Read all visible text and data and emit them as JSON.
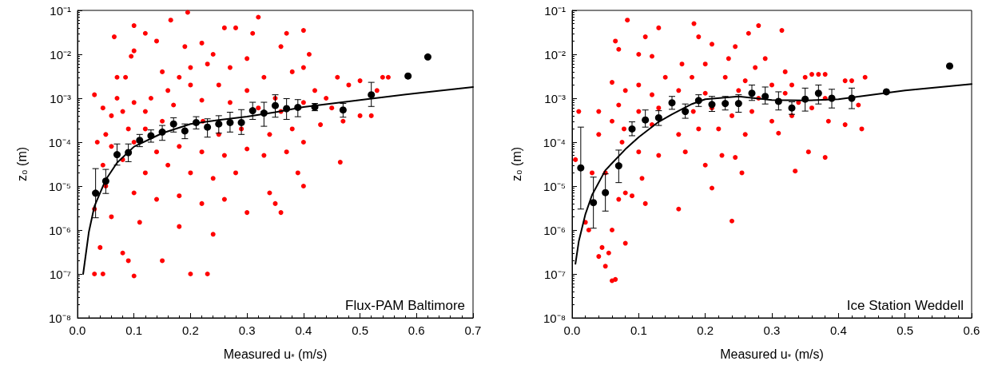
{
  "chart_data": [
    {
      "type": "scatter",
      "xlabel": "Measured u$_{*}$ (m/s)",
      "ylabel": "z₀ (m)",
      "log": "y",
      "annotations": [
        "Flux-PAM Baltimore"
      ],
      "xlim": [
        0,
        0.7
      ],
      "xticks": [
        {
          "value": 0,
          "label": "0.0"
        },
        0.1,
        0.2,
        0.3,
        0.4,
        0.5,
        0.6,
        0.7
      ],
      "ylim": [
        1e-08,
        0.1
      ],
      "yticks": [
        {
          "value": 1e-08,
          "label": "10⁻⁸"
        },
        {
          "value": 1e-07,
          "label": "10⁻⁷"
        },
        {
          "value": 1e-06,
          "label": "10⁻⁶"
        },
        {
          "value": 1e-05,
          "label": "10⁻⁵"
        },
        {
          "value": 0.0001,
          "label": "10⁻⁴"
        },
        {
          "value": 0.001,
          "label": "10⁻³"
        },
        {
          "value": 0.01,
          "label": "10⁻²"
        },
        {
          "value": 0.1,
          "label": "10⁻¹"
        }
      ],
      "series": [
        {
          "type": "scatter",
          "color": "#ff0000",
          "marker": "circle",
          "x": [
            0.195,
            0.165,
            0.32,
            0.1,
            0.065,
            0.12,
            0.14,
            0.19,
            0.22,
            0.26,
            0.28,
            0.31,
            0.36,
            0.37,
            0.4,
            0.41,
            0.1,
            0.095,
            0.24,
            0.3,
            0.07,
            0.085,
            0.15,
            0.18,
            0.2,
            0.23,
            0.27,
            0.33,
            0.38,
            0.4,
            0.46,
            0.48,
            0.5,
            0.54,
            0.55,
            0.53,
            0.42,
            0.44,
            0.35,
            0.3,
            0.25,
            0.2,
            0.16,
            0.13,
            0.1,
            0.07,
            0.03,
            0.045,
            0.06,
            0.08,
            0.12,
            0.17,
            0.22,
            0.27,
            0.32,
            0.36,
            0.4,
            0.45,
            0.5,
            0.52,
            0.47,
            0.43,
            0.38,
            0.34,
            0.29,
            0.25,
            0.222,
            0.15,
            0.12,
            0.09,
            0.05,
            0.035,
            0.06,
            0.1,
            0.14,
            0.18,
            0.22,
            0.26,
            0.3,
            0.33,
            0.37,
            0.4,
            0.39,
            0.4,
            0.465,
            0.045,
            0.08,
            0.12,
            0.16,
            0.2,
            0.24,
            0.28,
            0.05,
            0.1,
            0.14,
            0.18,
            0.22,
            0.26,
            0.34,
            0.35,
            0.36,
            0.03,
            0.06,
            0.11,
            0.18,
            0.24,
            0.3,
            0.04,
            0.08,
            0.09,
            0.15,
            0.03,
            0.045,
            0.1,
            0.2,
            0.23
          ],
          "values": [
            0.09,
            0.06,
            0.07,
            0.045,
            0.025,
            0.03,
            0.02,
            0.015,
            0.018,
            0.04,
            0.04,
            0.03,
            0.015,
            0.03,
            0.035,
            0.01,
            0.012,
            0.009,
            0.01,
            0.008,
            0.003,
            0.003,
            0.004,
            0.003,
            0.005,
            0.006,
            0.005,
            0.003,
            0.004,
            0.005,
            0.003,
            0.002,
            0.0025,
            0.003,
            0.003,
            0.0015,
            0.0015,
            0.001,
            0.001,
            0.0015,
            0.002,
            0.002,
            0.0015,
            0.001,
            0.0008,
            0.001,
            0.0012,
            0.0006,
            0.0004,
            0.0005,
            0.0005,
            0.0007,
            0.0009,
            0.0008,
            0.0006,
            0.0005,
            0.0008,
            0.0006,
            0.0004,
            0.0004,
            0.0003,
            0.00025,
            0.0002,
            0.00015,
            0.0002,
            0.00015,
            0.0003,
            0.0003,
            0.0002,
            0.0002,
            0.00015,
            0.0001,
            8e-05,
            0.0001,
            6e-05,
            8e-05,
            6e-05,
            5e-05,
            7e-05,
            5e-05,
            6e-05,
            0.0001,
            2e-05,
            1e-05,
            3.5e-05,
            3e-05,
            4e-05,
            2e-05,
            3e-05,
            2e-05,
            1.5e-05,
            2e-05,
            1e-05,
            7e-06,
            5e-06,
            6e-06,
            4e-06,
            5e-06,
            7e-06,
            4e-06,
            2.5e-06,
            3e-06,
            2e-06,
            1.5e-06,
            1.2e-06,
            8e-07,
            2.5e-06,
            4e-07,
            3e-07,
            2e-07,
            2e-07,
            1e-07,
            1e-07,
            9e-08,
            1e-07,
            1e-07
          ]
        },
        {
          "type": "scatter",
          "color": "#000000",
          "marker": "circle",
          "x": [
            0.032,
            0.05,
            0.07,
            0.09,
            0.11,
            0.13,
            0.15,
            0.17,
            0.19,
            0.21,
            0.23,
            0.25,
            0.27,
            0.29,
            0.31,
            0.33,
            0.35,
            0.37,
            0.39,
            0.42,
            0.47,
            0.52,
            0.585,
            0.62
          ],
          "values": [
            6.9e-06,
            1.3e-05,
            5.2e-05,
            5.8e-05,
            0.00011,
            0.00014,
            0.00017,
            0.00026,
            0.00018,
            0.00028,
            0.00022,
            0.00026,
            0.00028,
            0.00028,
            0.00052,
            0.00046,
            0.00068,
            0.00058,
            0.00062,
            0.00063,
            0.00054,
            0.0012,
            0.0032,
            0.0087
          ],
          "errors": [
            [
              1.9e-06,
              2.5e-05
            ],
            [
              6.8e-06,
              2.4e-05
            ],
            [
              3e-05,
              9.1e-05
            ],
            [
              3.6e-05,
              9.1e-05
            ],
            [
              7.9e-05,
              0.00015
            ],
            [
              0.0001,
              0.00019
            ],
            [
              0.00011,
              0.00024
            ],
            [
              0.00017,
              0.00036
            ],
            [
              0.00012,
              0.00026
            ],
            [
              0.0002,
              0.00038
            ],
            [
              0.00013,
              0.00034
            ],
            [
              0.00016,
              0.0004
            ],
            [
              0.00017,
              0.00048
            ],
            [
              0.00015,
              0.00055
            ],
            [
              0.00033,
              0.00081
            ],
            [
              0.00023,
              0.00081
            ],
            [
              0.00037,
              0.0012
            ],
            [
              0.00033,
              0.00098
            ],
            [
              0.00038,
              0.00093
            ],
            [
              0.00052,
              0.00076
            ],
            [
              0.00037,
              0.00076
            ],
            [
              0.00065,
              0.0023
            ],
            null,
            null
          ]
        },
        {
          "type": "line",
          "color": "#000000",
          "marker": "none",
          "line_style": "solid",
          "x": [
            0.01,
            0.02,
            0.03,
            0.05,
            0.07,
            0.1,
            0.15,
            0.2,
            0.25,
            0.3,
            0.35,
            0.4,
            0.5,
            0.6,
            0.7
          ],
          "values": [
            1e-07,
            8.9e-07,
            3.5e-06,
            1.4e-05,
            3.4e-05,
            7.9e-05,
            0.00016,
            0.00026,
            0.00032,
            0.00038,
            0.00048,
            0.00063,
            0.00091,
            0.0013,
            0.0018
          ]
        }
      ]
    },
    {
      "type": "scatter",
      "xlabel": "Measured u$_{*}$ (m/s)",
      "ylabel": "z₀ (m)",
      "log": "y",
      "annotations": [
        "Ice Station Weddell"
      ],
      "xlim": [
        0,
        0.6
      ],
      "xticks": [
        {
          "value": 0,
          "label": "0.0"
        },
        0.1,
        0.2,
        0.3,
        0.4,
        0.5,
        0.6
      ],
      "ylim": [
        1e-08,
        0.1
      ],
      "yticks": [
        {
          "value": 1e-08,
          "label": "10⁻⁸"
        },
        {
          "value": 1e-07,
          "label": "10⁻⁷"
        },
        {
          "value": 1e-06,
          "label": "10⁻⁶"
        },
        {
          "value": 1e-05,
          "label": "10⁻⁵"
        },
        {
          "value": 0.0001,
          "label": "10⁻⁴"
        },
        {
          "value": 0.001,
          "label": "10⁻³"
        },
        {
          "value": 0.01,
          "label": "10⁻²"
        },
        {
          "value": 0.1,
          "label": "10⁻¹"
        }
      ],
      "series": [
        {
          "type": "scatter",
          "color": "#ff0000",
          "marker": "circle",
          "x": [
            0.083,
            0.183,
            0.13,
            0.28,
            0.315,
            0.265,
            0.065,
            0.11,
            0.19,
            0.21,
            0.245,
            0.07,
            0.1,
            0.12,
            0.165,
            0.2,
            0.29,
            0.235,
            0.275,
            0.32,
            0.44,
            0.06,
            0.1,
            0.14,
            0.18,
            0.23,
            0.26,
            0.3,
            0.33,
            0.35,
            0.36,
            0.37,
            0.38,
            0.41,
            0.42,
            0.08,
            0.12,
            0.16,
            0.2,
            0.25,
            0.28,
            0.32,
            0.34,
            0.38,
            0.43,
            0.04,
            0.07,
            0.1,
            0.13,
            0.182,
            0.21,
            0.24,
            0.27,
            0.3,
            0.33,
            0.36,
            0.385,
            0.41,
            0.435,
            0.06,
            0.078,
            0.12,
            0.16,
            0.19,
            0.22,
            0.26,
            0.31,
            0.38,
            0.355,
            0.005,
            0.04,
            0.075,
            0.1,
            0.13,
            0.17,
            0.2,
            0.245,
            0.255,
            0.21,
            0.225,
            0.335,
            0.01,
            0.03,
            0.05,
            0.07,
            0.08,
            0.09,
            0.105,
            0.11,
            0.16,
            0.24,
            0.02,
            0.025,
            0.04,
            0.045,
            0.05,
            0.055,
            0.06,
            0.065,
            0.06,
            0.08
          ],
          "values": [
            0.06,
            0.05,
            0.04,
            0.045,
            0.035,
            0.03,
            0.02,
            0.025,
            0.025,
            0.017,
            0.015,
            0.013,
            0.01,
            0.009,
            0.006,
            0.006,
            0.008,
            0.008,
            0.005,
            0.004,
            0.003,
            0.0023,
            0.002,
            0.003,
            0.003,
            0.003,
            0.0025,
            0.002,
            0.002,
            0.003,
            0.0035,
            0.0035,
            0.0035,
            0.0025,
            0.0025,
            0.0015,
            0.0012,
            0.0015,
            0.0013,
            0.0015,
            0.001,
            0.0013,
            0.0008,
            0.001,
            0.0007,
            0.0005,
            0.0007,
            0.0005,
            0.0006,
            0.0005,
            0.0006,
            0.0004,
            0.0005,
            0.0003,
            0.0004,
            0.0006,
            0.0003,
            0.00025,
            0.0002,
            0.0003,
            0.0002,
            0.00025,
            0.00015,
            0.0002,
            0.0002,
            0.00015,
            0.00016,
            4.5e-05,
            6e-05,
            4e-05,
            0.00015,
            0.0001,
            6e-05,
            5e-05,
            6e-05,
            3e-05,
            4.5e-05,
            2e-05,
            9e-06,
            5e-05,
            2.2e-05,
            0.0005,
            2e-05,
            2e-05,
            5e-06,
            7e-06,
            6e-06,
            1.5e-05,
            4e-06,
            3e-06,
            1.6e-06,
            1.5e-06,
            1e-06,
            2.5e-07,
            4e-07,
            1.5e-07,
            3e-07,
            7e-08,
            7.5e-08,
            1e-06,
            5e-07
          ]
        },
        {
          "type": "scatter",
          "color": "#000000",
          "marker": "circle",
          "x": [
            0.013,
            0.032,
            0.05,
            0.07,
            0.09,
            0.11,
            0.13,
            0.15,
            0.17,
            0.19,
            0.21,
            0.23,
            0.25,
            0.27,
            0.29,
            0.31,
            0.33,
            0.35,
            0.37,
            0.39,
            0.42,
            0.472,
            0.567
          ],
          "values": [
            2.6e-05,
            4.2e-06,
            7.1e-06,
            2.9e-05,
            0.0002,
            0.00032,
            0.00036,
            0.00079,
            0.0005,
            0.00089,
            0.00072,
            0.00076,
            0.00076,
            0.0013,
            0.0011,
            0.00085,
            0.0006,
            0.00095,
            0.0013,
            0.001,
            0.001,
            0.0014,
            0.0054
          ],
          "errors": [
            [
              3e-06,
              0.00022
            ],
            [
              1.1e-06,
              1.6e-05
            ],
            [
              2.7e-06,
              1.9e-05
            ],
            [
              1.2e-05,
              6.6e-05
            ],
            [
              0.00014,
              0.00029
            ],
            [
              0.00022,
              0.00054
            ],
            [
              0.00024,
              0.00052
            ],
            [
              0.00056,
              0.0011
            ],
            [
              0.00035,
              0.00074
            ],
            [
              0.00065,
              0.0012
            ],
            [
              0.0005,
              0.0011
            ],
            [
              0.00054,
              0.0011
            ],
            [
              0.00048,
              0.0012
            ],
            [
              0.00089,
              0.002
            ],
            [
              0.00074,
              0.0018
            ],
            [
              0.00054,
              0.0014
            ],
            [
              0.00043,
              0.00083
            ],
            [
              0.00051,
              0.0017
            ],
            [
              0.00074,
              0.002
            ],
            [
              0.0006,
              0.0016
            ],
            [
              0.00058,
              0.0017
            ],
            null,
            null
          ]
        },
        {
          "type": "line",
          "color": "#000000",
          "marker": "none",
          "line_style": "solid",
          "x": [
            0.005,
            0.01,
            0.02,
            0.03,
            0.05,
            0.08,
            0.1,
            0.13,
            0.15,
            0.18,
            0.2,
            0.25,
            0.3,
            0.35,
            0.4,
            0.45,
            0.5,
            0.6
          ],
          "values": [
            1.7e-07,
            5.5e-07,
            2.3e-06,
            6.3e-06,
            2.3e-05,
            6.9e-05,
            0.00013,
            0.00029,
            0.00043,
            0.00074,
            0.00095,
            0.0011,
            0.00091,
            0.00089,
            0.00095,
            0.0012,
            0.0015,
            0.0021
          ]
        }
      ]
    }
  ]
}
